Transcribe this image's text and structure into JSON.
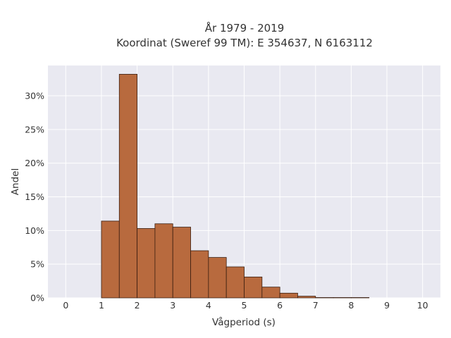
{
  "chart_data": {
    "type": "bar",
    "title_lines": [
      "År 1979 - 2019",
      "Koordinat (Sweref 99 TM): E 354637, N 6163112"
    ],
    "xlabel": "Vågperiod (s)",
    "ylabel": "Andel",
    "xlim": [
      -0.5,
      10.5
    ],
    "ylim": [
      0,
      34.5
    ],
    "x_ticks": [
      "0",
      "1",
      "2",
      "3",
      "4",
      "5",
      "6",
      "7",
      "8",
      "9",
      "10"
    ],
    "y_ticks": [
      "0%",
      "5%",
      "10%",
      "15%",
      "20%",
      "25%",
      "30%"
    ],
    "grid": true,
    "bin_width": 0.5,
    "bins": [
      {
        "x0": 1.0,
        "value": 11.4
      },
      {
        "x0": 1.5,
        "value": 33.2
      },
      {
        "x0": 2.0,
        "value": 10.3
      },
      {
        "x0": 2.5,
        "value": 11.0
      },
      {
        "x0": 3.0,
        "value": 10.5
      },
      {
        "x0": 3.5,
        "value": 7.0
      },
      {
        "x0": 4.0,
        "value": 6.0
      },
      {
        "x0": 4.5,
        "value": 4.6
      },
      {
        "x0": 5.0,
        "value": 3.1
      },
      {
        "x0": 5.5,
        "value": 1.6
      },
      {
        "x0": 6.0,
        "value": 0.7
      },
      {
        "x0": 6.5,
        "value": 0.25
      },
      {
        "x0": 7.0,
        "value": 0.05
      },
      {
        "x0": 7.5,
        "value": 0.05
      },
      {
        "x0": 8.0,
        "value": 0.05
      }
    ],
    "colors": {
      "bar": "#b86a3e",
      "bar_edge": "#3a1e10",
      "plot_bg": "#e9e9f1",
      "grid": "#ffffff"
    }
  }
}
